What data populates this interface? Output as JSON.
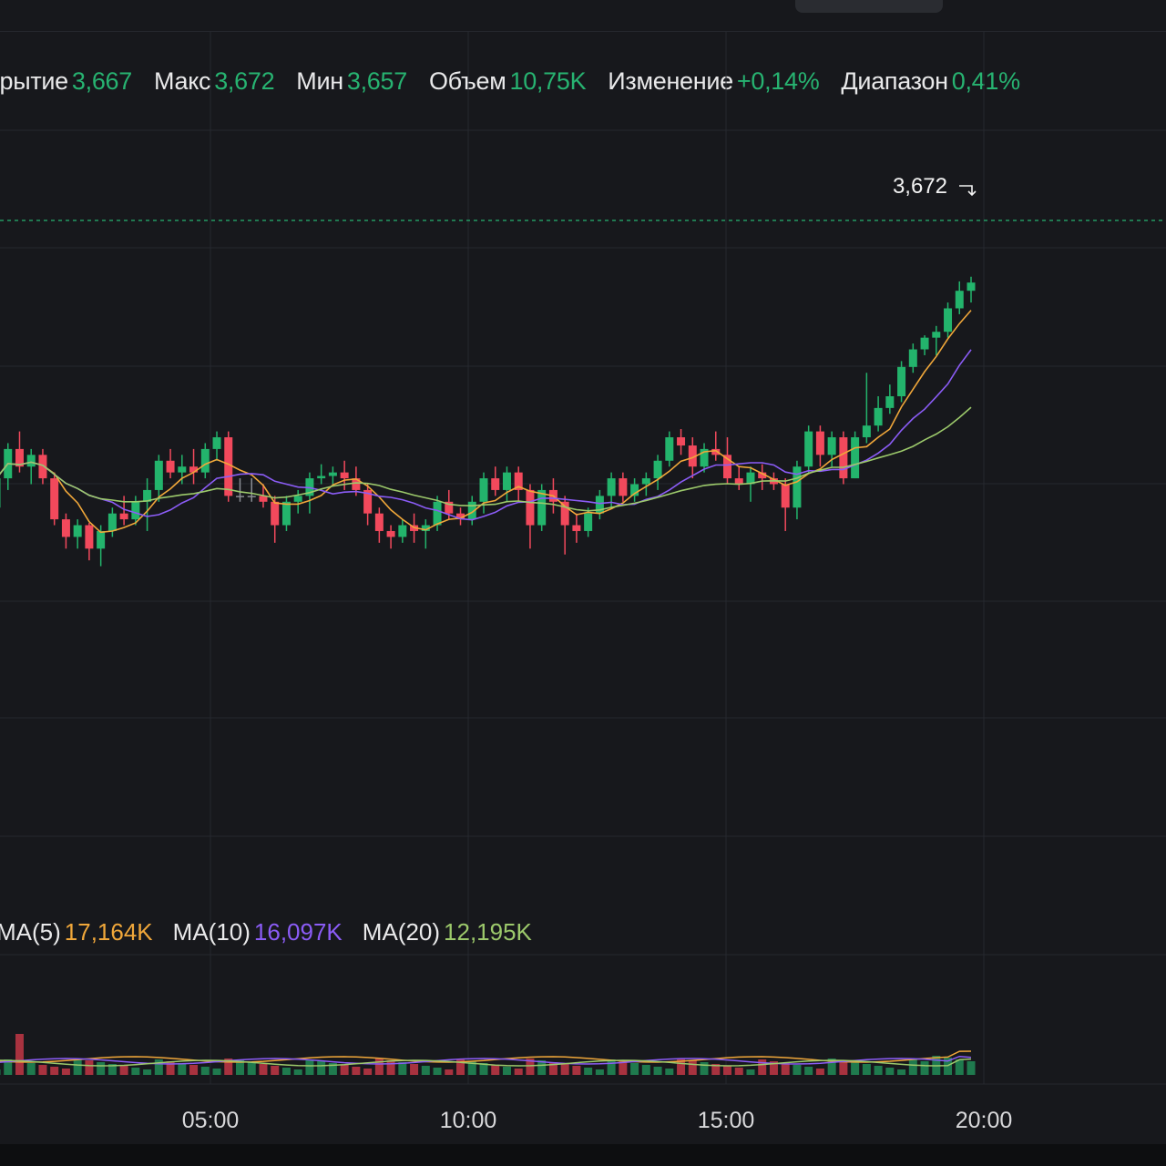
{
  "stats": [
    {
      "label": "крытие",
      "value": "3,667",
      "color": "#27b371"
    },
    {
      "label": "Макс",
      "value": "3,672",
      "color": "#27b371"
    },
    {
      "label": "Мин",
      "value": "3,657",
      "color": "#27b371"
    },
    {
      "label": "Объем",
      "value": "10,75K",
      "color": "#27b371"
    },
    {
      "label": "Изменение",
      "value": "+0,14%",
      "color": "#27b371"
    },
    {
      "label": "Диапазон",
      "value": "0,41%",
      "color": "#27b371"
    }
  ],
  "price_marker": {
    "value": "3,672",
    "icon": "arrow-down-right-icon"
  },
  "volume_ma": [
    {
      "label": "MA(5)",
      "value": "17,164K",
      "color": "#f0a73a"
    },
    {
      "label": "MA(10)",
      "value": "16,097K",
      "color": "#8b5cf6"
    },
    {
      "label": "MA(20)",
      "value": "12,195K",
      "color": "#9cc96b"
    }
  ],
  "colors": {
    "up": "#23b46c",
    "down": "#f2495c",
    "ma5": "#f0a73a",
    "ma10": "#8b5cf6",
    "ma20": "#9cc96b",
    "grid": "#26282e",
    "dashed": "#27b371"
  },
  "chart_data": {
    "type": "candlestick",
    "x_ticks": [
      "05:00",
      "10:00",
      "15:00",
      "20:00"
    ],
    "x_tick_times": [
      5,
      10,
      15,
      20
    ],
    "x_range_hours": [
      0.9,
      21.0
    ],
    "candles": [
      [
        3.6475,
        3.6515,
        3.644,
        3.65
      ],
      [
        3.65,
        3.653,
        3.649,
        3.6525
      ],
      [
        3.6525,
        3.654,
        3.6505,
        3.651
      ],
      [
        3.651,
        3.6525,
        3.6495,
        3.652
      ],
      [
        3.652,
        3.6525,
        3.6495,
        3.65
      ],
      [
        3.65,
        3.6505,
        3.646,
        3.6465
      ],
      [
        3.6465,
        3.647,
        3.644,
        3.645
      ],
      [
        3.645,
        3.6465,
        3.644,
        3.646
      ],
      [
        3.646,
        3.6462,
        3.643,
        3.644
      ],
      [
        3.644,
        3.646,
        3.6425,
        3.6455
      ],
      [
        3.6455,
        3.6475,
        3.645,
        3.647
      ],
      [
        3.647,
        3.6485,
        3.646,
        3.6465
      ],
      [
        3.6465,
        3.6485,
        3.646,
        3.648
      ],
      [
        3.648,
        3.65,
        3.6455,
        3.649
      ],
      [
        3.649,
        3.652,
        3.648,
        3.6515
      ],
      [
        3.6515,
        3.6525,
        3.65,
        3.6505
      ],
      [
        3.6505,
        3.652,
        3.6495,
        3.651
      ],
      [
        3.651,
        3.6525,
        3.6495,
        3.6505
      ],
      [
        3.6505,
        3.653,
        3.65,
        3.6525
      ],
      [
        3.6525,
        3.654,
        3.6515,
        3.6535
      ],
      [
        3.6535,
        3.654,
        3.648,
        3.6485
      ],
      [
        3.6485,
        3.65,
        3.648,
        3.6485
      ],
      [
        3.6485,
        3.65,
        3.648,
        3.6485
      ],
      [
        3.6485,
        3.6495,
        3.6475,
        3.648
      ],
      [
        3.648,
        3.6485,
        3.6445,
        3.646
      ],
      [
        3.646,
        3.6485,
        3.6455,
        3.648
      ],
      [
        3.648,
        3.649,
        3.647,
        3.6485
      ],
      [
        3.6485,
        3.6505,
        3.647,
        3.65
      ],
      [
        3.65,
        3.6512,
        3.6495,
        3.6502
      ],
      [
        3.6502,
        3.651,
        3.6495,
        3.6505
      ],
      [
        3.6505,
        3.6515,
        3.649,
        3.65
      ],
      [
        3.65,
        3.651,
        3.6485,
        3.649
      ],
      [
        3.649,
        3.6495,
        3.646,
        3.647
      ],
      [
        3.647,
        3.6475,
        3.6445,
        3.6455
      ],
      [
        3.6455,
        3.646,
        3.644,
        3.645
      ],
      [
        3.645,
        3.6465,
        3.6445,
        3.646
      ],
      [
        3.646,
        3.647,
        3.6445,
        3.6455
      ],
      [
        3.6455,
        3.6465,
        3.644,
        3.646
      ],
      [
        3.646,
        3.6485,
        3.6455,
        3.648
      ],
      [
        3.648,
        3.649,
        3.6465,
        3.647
      ],
      [
        3.647,
        3.6475,
        3.646,
        3.6465
      ],
      [
        3.6465,
        3.6485,
        3.646,
        3.648
      ],
      [
        3.648,
        3.6505,
        3.647,
        3.65
      ],
      [
        3.65,
        3.651,
        3.6485,
        3.649
      ],
      [
        3.649,
        3.651,
        3.648,
        3.6505
      ],
      [
        3.6505,
        3.651,
        3.648,
        3.649
      ],
      [
        3.649,
        3.6495,
        3.644,
        3.646
      ],
      [
        3.646,
        3.6495,
        3.6455,
        3.649
      ],
      [
        3.649,
        3.65,
        3.647,
        3.648
      ],
      [
        3.648,
        3.6485,
        3.6435,
        3.646
      ],
      [
        3.646,
        3.647,
        3.6445,
        3.6455
      ],
      [
        3.6455,
        3.6475,
        3.645,
        3.647
      ],
      [
        3.647,
        3.649,
        3.6465,
        3.6485
      ],
      [
        3.6485,
        3.6505,
        3.6475,
        3.65
      ],
      [
        3.65,
        3.6505,
        3.648,
        3.6485
      ],
      [
        3.6485,
        3.65,
        3.648,
        3.6495
      ],
      [
        3.6495,
        3.6505,
        3.6485,
        3.65
      ],
      [
        3.65,
        3.652,
        3.649,
        3.6515
      ],
      [
        3.6515,
        3.654,
        3.651,
        3.6535
      ],
      [
        3.6535,
        3.6542,
        3.652,
        3.6528
      ],
      [
        3.6528,
        3.6535,
        3.65,
        3.651
      ],
      [
        3.651,
        3.653,
        3.6505,
        3.6525
      ],
      [
        3.6525,
        3.654,
        3.6515,
        3.652
      ],
      [
        3.652,
        3.6535,
        3.6495,
        3.65
      ],
      [
        3.65,
        3.651,
        3.649,
        3.6495
      ],
      [
        3.6495,
        3.651,
        3.648,
        3.6505
      ],
      [
        3.6505,
        3.6512,
        3.649,
        3.65
      ],
      [
        3.65,
        3.6505,
        3.649,
        3.6495
      ],
      [
        3.6495,
        3.65,
        3.6455,
        3.6475
      ],
      [
        3.6475,
        3.6515,
        3.6465,
        3.651
      ],
      [
        3.651,
        3.6545,
        3.6505,
        3.654
      ],
      [
        3.654,
        3.6545,
        3.651,
        3.652
      ],
      [
        3.652,
        3.654,
        3.651,
        3.6535
      ],
      [
        3.6535,
        3.654,
        3.6495,
        3.65
      ],
      [
        3.65,
        3.654,
        3.65,
        3.6535
      ],
      [
        3.6535,
        3.659,
        3.653,
        3.6545
      ],
      [
        3.6545,
        3.657,
        3.654,
        3.656
      ],
      [
        3.656,
        3.658,
        3.6555,
        3.657
      ],
      [
        3.657,
        3.66,
        3.6565,
        3.6595
      ],
      [
        3.6595,
        3.6615,
        3.659,
        3.661
      ],
      [
        3.661,
        3.6622,
        3.6605,
        3.662
      ],
      [
        3.662,
        3.663,
        3.6605,
        3.6625
      ],
      [
        3.6625,
        3.665,
        3.662,
        3.6645
      ],
      [
        3.6645,
        3.6668,
        3.664,
        3.666
      ],
      [
        3.666,
        3.6672,
        3.665,
        3.6667
      ]
    ],
    "volume_ma_labels": [
      "MA(5)",
      "MA(10)",
      "MA(20)"
    ]
  }
}
